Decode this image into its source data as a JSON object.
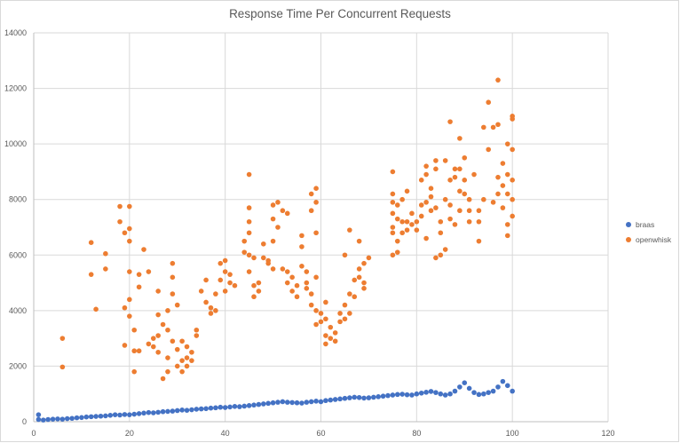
{
  "chart_data": {
    "type": "scatter",
    "title": "Response Time Per Concurrent Requests",
    "xlabel": "",
    "ylabel": "",
    "xlim": [
      0,
      120
    ],
    "ylim": [
      0,
      14000
    ],
    "x_ticks": [
      0,
      20,
      40,
      60,
      80,
      100,
      120
    ],
    "y_ticks": [
      0,
      2000,
      4000,
      6000,
      8000,
      10000,
      12000,
      14000
    ],
    "grid": true,
    "legend_position": "right",
    "series": [
      {
        "name": "braas",
        "color": "#4472C4",
        "points": [
          [
            1,
            250
          ],
          [
            1,
            80
          ],
          [
            2,
            60
          ],
          [
            3,
            80
          ],
          [
            4,
            90
          ],
          [
            5,
            100
          ],
          [
            6,
            90
          ],
          [
            7,
            110
          ],
          [
            8,
            120
          ],
          [
            9,
            140
          ],
          [
            10,
            150
          ],
          [
            11,
            170
          ],
          [
            12,
            180
          ],
          [
            13,
            190
          ],
          [
            14,
            200
          ],
          [
            15,
            210
          ],
          [
            16,
            230
          ],
          [
            17,
            250
          ],
          [
            18,
            240
          ],
          [
            19,
            260
          ],
          [
            20,
            250
          ],
          [
            21,
            270
          ],
          [
            22,
            290
          ],
          [
            23,
            310
          ],
          [
            24,
            330
          ],
          [
            25,
            320
          ],
          [
            26,
            340
          ],
          [
            27,
            360
          ],
          [
            28,
            370
          ],
          [
            29,
            380
          ],
          [
            30,
            400
          ],
          [
            31,
            420
          ],
          [
            32,
            410
          ],
          [
            33,
            430
          ],
          [
            34,
            450
          ],
          [
            35,
            460
          ],
          [
            36,
            470
          ],
          [
            37,
            490
          ],
          [
            38,
            500
          ],
          [
            39,
            520
          ],
          [
            40,
            510
          ],
          [
            41,
            530
          ],
          [
            42,
            550
          ],
          [
            43,
            540
          ],
          [
            44,
            560
          ],
          [
            45,
            580
          ],
          [
            46,
            600
          ],
          [
            47,
            620
          ],
          [
            48,
            640
          ],
          [
            49,
            660
          ],
          [
            50,
            680
          ],
          [
            51,
            700
          ],
          [
            52,
            720
          ],
          [
            53,
            700
          ],
          [
            54,
            690
          ],
          [
            55,
            680
          ],
          [
            56,
            670
          ],
          [
            57,
            700
          ],
          [
            58,
            720
          ],
          [
            59,
            740
          ],
          [
            60,
            720
          ],
          [
            61,
            760
          ],
          [
            62,
            780
          ],
          [
            63,
            800
          ],
          [
            64,
            820
          ],
          [
            65,
            840
          ],
          [
            66,
            860
          ],
          [
            67,
            880
          ],
          [
            68,
            870
          ],
          [
            69,
            850
          ],
          [
            70,
            860
          ],
          [
            71,
            880
          ],
          [
            72,
            900
          ],
          [
            73,
            920
          ],
          [
            74,
            940
          ],
          [
            75,
            960
          ],
          [
            76,
            980
          ],
          [
            77,
            990
          ],
          [
            78,
            970
          ],
          [
            79,
            960
          ],
          [
            80,
            1000
          ],
          [
            81,
            1030
          ],
          [
            82,
            1060
          ],
          [
            83,
            1090
          ],
          [
            84,
            1050
          ],
          [
            85,
            1000
          ],
          [
            86,
            960
          ],
          [
            87,
            1000
          ],
          [
            88,
            1100
          ],
          [
            89,
            1250
          ],
          [
            90,
            1400
          ],
          [
            91,
            1200
          ],
          [
            92,
            1050
          ],
          [
            93,
            980
          ],
          [
            94,
            1000
          ],
          [
            95,
            1050
          ],
          [
            96,
            1100
          ],
          [
            97,
            1250
          ],
          [
            98,
            1450
          ],
          [
            99,
            1300
          ],
          [
            100,
            1100
          ]
        ]
      },
      {
        "name": "openwhisk",
        "color": "#ED7D31",
        "points": [
          [
            6,
            3000
          ],
          [
            6,
            1970
          ],
          [
            12,
            6450
          ],
          [
            12,
            5300
          ],
          [
            13,
            4050
          ],
          [
            15,
            6050
          ],
          [
            15,
            5500
          ],
          [
            18,
            7750
          ],
          [
            18,
            7200
          ],
          [
            19,
            6800
          ],
          [
            19,
            4100
          ],
          [
            19,
            2750
          ],
          [
            20,
            7750
          ],
          [
            20,
            6950
          ],
          [
            20,
            6500
          ],
          [
            20,
            5400
          ],
          [
            20,
            4400
          ],
          [
            20,
            3800
          ],
          [
            21,
            3300
          ],
          [
            21,
            2550
          ],
          [
            21,
            1800
          ],
          [
            22,
            5300
          ],
          [
            22,
            4850
          ],
          [
            22,
            2550
          ],
          [
            23,
            6200
          ],
          [
            24,
            5400
          ],
          [
            24,
            2800
          ],
          [
            25,
            3000
          ],
          [
            25,
            2700
          ],
          [
            26,
            4700
          ],
          [
            26,
            3850
          ],
          [
            26,
            3100
          ],
          [
            26,
            2500
          ],
          [
            27,
            1550
          ],
          [
            27,
            3500
          ],
          [
            28,
            4000
          ],
          [
            28,
            3300
          ],
          [
            28,
            2300
          ],
          [
            28,
            1800
          ],
          [
            29,
            5700
          ],
          [
            29,
            5200
          ],
          [
            29,
            4600
          ],
          [
            29,
            2900
          ],
          [
            30,
            4200
          ],
          [
            30,
            2600
          ],
          [
            30,
            2000
          ],
          [
            31,
            2900
          ],
          [
            31,
            2200
          ],
          [
            31,
            1800
          ],
          [
            32,
            2700
          ],
          [
            32,
            2300
          ],
          [
            32,
            2000
          ],
          [
            33,
            2500
          ],
          [
            33,
            2200
          ],
          [
            34,
            3300
          ],
          [
            34,
            3100
          ],
          [
            35,
            4700
          ],
          [
            36,
            5100
          ],
          [
            36,
            4300
          ],
          [
            37,
            4100
          ],
          [
            37,
            3900
          ],
          [
            38,
            4600
          ],
          [
            38,
            4000
          ],
          [
            39,
            5700
          ],
          [
            39,
            5100
          ],
          [
            40,
            5800
          ],
          [
            40,
            5400
          ],
          [
            40,
            4700
          ],
          [
            41,
            5300
          ],
          [
            41,
            5000
          ],
          [
            42,
            4900
          ],
          [
            44,
            6500
          ],
          [
            44,
            6100
          ],
          [
            45,
            8900
          ],
          [
            45,
            7700
          ],
          [
            45,
            7200
          ],
          [
            45,
            6800
          ],
          [
            45,
            6000
          ],
          [
            45,
            5400
          ],
          [
            46,
            5900
          ],
          [
            46,
            4900
          ],
          [
            46,
            4500
          ],
          [
            47,
            5000
          ],
          [
            47,
            4700
          ],
          [
            48,
            6400
          ],
          [
            48,
            5900
          ],
          [
            49,
            5800
          ],
          [
            49,
            5700
          ],
          [
            50,
            7800
          ],
          [
            50,
            7300
          ],
          [
            50,
            6500
          ],
          [
            50,
            5500
          ],
          [
            51,
            7900
          ],
          [
            51,
            7000
          ],
          [
            52,
            5500
          ],
          [
            52,
            7600
          ],
          [
            53,
            7500
          ],
          [
            53,
            5400
          ],
          [
            53,
            5000
          ],
          [
            54,
            5200
          ],
          [
            54,
            4700
          ],
          [
            55,
            4900
          ],
          [
            55,
            4500
          ],
          [
            56,
            6700
          ],
          [
            56,
            6300
          ],
          [
            56,
            5600
          ],
          [
            57,
            5400
          ],
          [
            57,
            5000
          ],
          [
            57,
            4800
          ],
          [
            58,
            8200
          ],
          [
            58,
            7600
          ],
          [
            58,
            4600
          ],
          [
            58,
            4200
          ],
          [
            59,
            8400
          ],
          [
            59,
            7900
          ],
          [
            59,
            6800
          ],
          [
            59,
            5200
          ],
          [
            59,
            4000
          ],
          [
            59,
            3500
          ],
          [
            60,
            3900
          ],
          [
            60,
            3600
          ],
          [
            61,
            4300
          ],
          [
            61,
            3700
          ],
          [
            61,
            3100
          ],
          [
            61,
            2800
          ],
          [
            62,
            3400
          ],
          [
            62,
            3000
          ],
          [
            63,
            3200
          ],
          [
            63,
            2900
          ],
          [
            64,
            3900
          ],
          [
            64,
            3600
          ],
          [
            65,
            6000
          ],
          [
            65,
            4200
          ],
          [
            65,
            3700
          ],
          [
            66,
            6900
          ],
          [
            66,
            4600
          ],
          [
            66,
            3900
          ],
          [
            67,
            5100
          ],
          [
            67,
            4500
          ],
          [
            68,
            6500
          ],
          [
            68,
            5500
          ],
          [
            68,
            5200
          ],
          [
            69,
            5700
          ],
          [
            69,
            5000
          ],
          [
            69,
            4800
          ],
          [
            70,
            5900
          ],
          [
            75,
            9000
          ],
          [
            75,
            8200
          ],
          [
            75,
            7900
          ],
          [
            75,
            7500
          ],
          [
            75,
            7000
          ],
          [
            75,
            6800
          ],
          [
            75,
            6000
          ],
          [
            76,
            7800
          ],
          [
            76,
            7300
          ],
          [
            76,
            6500
          ],
          [
            76,
            6100
          ],
          [
            77,
            8000
          ],
          [
            77,
            7200
          ],
          [
            77,
            6800
          ],
          [
            78,
            8300
          ],
          [
            78,
            7200
          ],
          [
            78,
            6900
          ],
          [
            79,
            7500
          ],
          [
            79,
            7100
          ],
          [
            80,
            7200
          ],
          [
            80,
            6900
          ],
          [
            81,
            8700
          ],
          [
            81,
            7800
          ],
          [
            81,
            7400
          ],
          [
            82,
            9200
          ],
          [
            82,
            8900
          ],
          [
            82,
            7900
          ],
          [
            82,
            6600
          ],
          [
            83,
            8400
          ],
          [
            83,
            8100
          ],
          [
            83,
            7600
          ],
          [
            84,
            9400
          ],
          [
            84,
            9100
          ],
          [
            84,
            7700
          ],
          [
            84,
            5900
          ],
          [
            85,
            7200
          ],
          [
            85,
            6000
          ],
          [
            85,
            6800
          ],
          [
            86,
            9400
          ],
          [
            86,
            8000
          ],
          [
            86,
            6200
          ],
          [
            87,
            10800
          ],
          [
            87,
            8700
          ],
          [
            87,
            7800
          ],
          [
            87,
            7300
          ],
          [
            88,
            9100
          ],
          [
            88,
            8800
          ],
          [
            88,
            7100
          ],
          [
            89,
            10200
          ],
          [
            89,
            9100
          ],
          [
            89,
            8300
          ],
          [
            89,
            7600
          ],
          [
            90,
            8700
          ],
          [
            90,
            8200
          ],
          [
            90,
            9500
          ],
          [
            91,
            8000
          ],
          [
            91,
            7600
          ],
          [
            91,
            7200
          ],
          [
            92,
            8900
          ],
          [
            93,
            7600
          ],
          [
            93,
            7200
          ],
          [
            93,
            6500
          ],
          [
            94,
            10600
          ],
          [
            94,
            8000
          ],
          [
            95,
            11500
          ],
          [
            95,
            9800
          ],
          [
            96,
            10600
          ],
          [
            96,
            7900
          ],
          [
            97,
            12300
          ],
          [
            97,
            10700
          ],
          [
            97,
            8800
          ],
          [
            97,
            8200
          ],
          [
            98,
            9300
          ],
          [
            98,
            8500
          ],
          [
            98,
            7700
          ],
          [
            99,
            10000
          ],
          [
            99,
            8900
          ],
          [
            99,
            8200
          ],
          [
            99,
            7100
          ],
          [
            99,
            6700
          ],
          [
            100,
            11000
          ],
          [
            100,
            10900
          ],
          [
            100,
            9800
          ],
          [
            100,
            8700
          ],
          [
            100,
            8000
          ],
          [
            100,
            7400
          ]
        ]
      }
    ]
  }
}
